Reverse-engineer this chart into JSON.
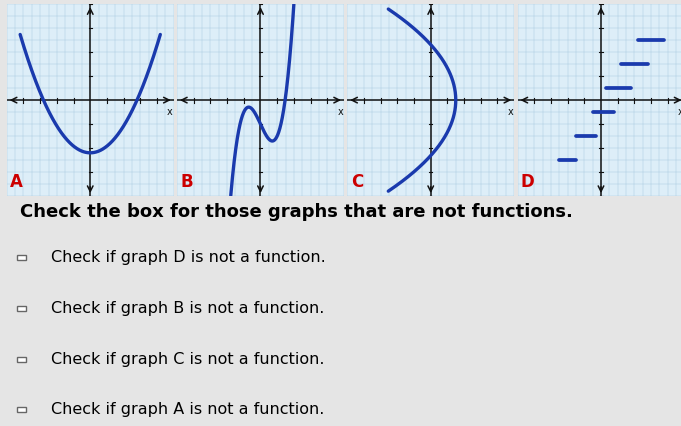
{
  "title": "Check the box for those graphs that are not functions.",
  "checkboxes": [
    {
      "label": "Check if graph D is not a function."
    },
    {
      "label": "Check if graph B is not a function."
    },
    {
      "label": "Check if graph C is not a function."
    },
    {
      "label": "Check if graph A is not a function."
    }
  ],
  "graph_labels": [
    "A",
    "B",
    "C",
    "D"
  ],
  "label_color": "#cc0000",
  "curve_color": "#1a3aad",
  "grid_color": "#aacce0",
  "axis_color": "#111111",
  "panel_background": "#ddeef8",
  "outer_background": "#e5e5e5",
  "title_fontsize": 13,
  "checkbox_fontsize": 11.5
}
